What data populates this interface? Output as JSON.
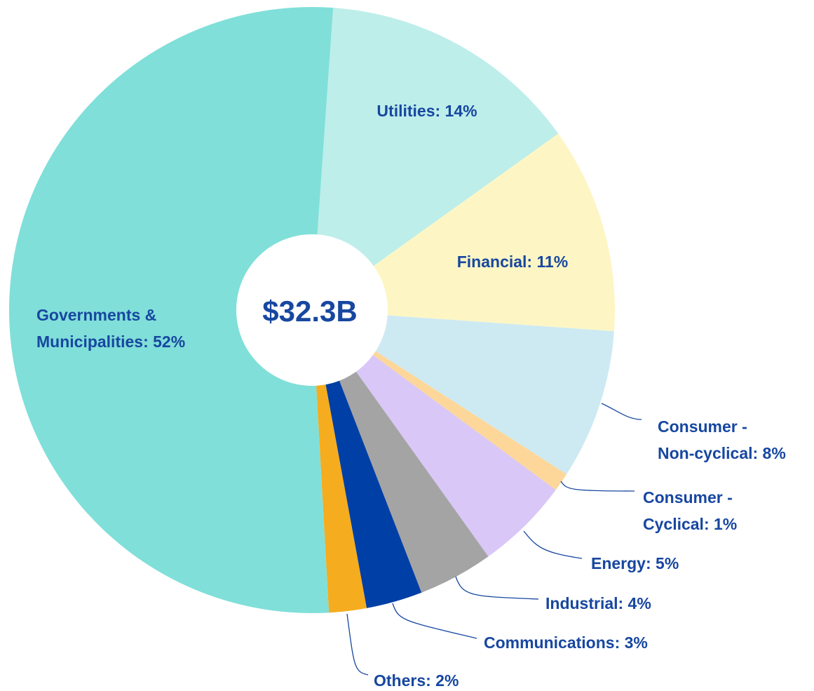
{
  "chart_data": {
    "type": "donut",
    "center_label": "$32.3B",
    "labels": [
      [
        "Utilities: 14%"
      ],
      [
        "Financial: 11%"
      ],
      [
        "Consumer -",
        "Non-cyclical: 8%"
      ],
      [
        "Consumer -",
        "Cyclical: 1%"
      ],
      [
        "Energy: 5%"
      ],
      [
        "Industrial: 4%"
      ],
      [
        "Communications: 3%"
      ],
      [
        "Others: 2%"
      ],
      [
        "Governments &",
        "Municipalities: 52%"
      ]
    ],
    "values": [
      14,
      11,
      8,
      1,
      5,
      4,
      3,
      2,
      52
    ],
    "colors": [
      "#bdeeea",
      "#fdf6c4",
      "#cdeaf3",
      "#fdd79a",
      "#d8c7f7",
      "#a4a4a4",
      "#003fa5",
      "#f5ac1e",
      "#80dfd9"
    ]
  }
}
